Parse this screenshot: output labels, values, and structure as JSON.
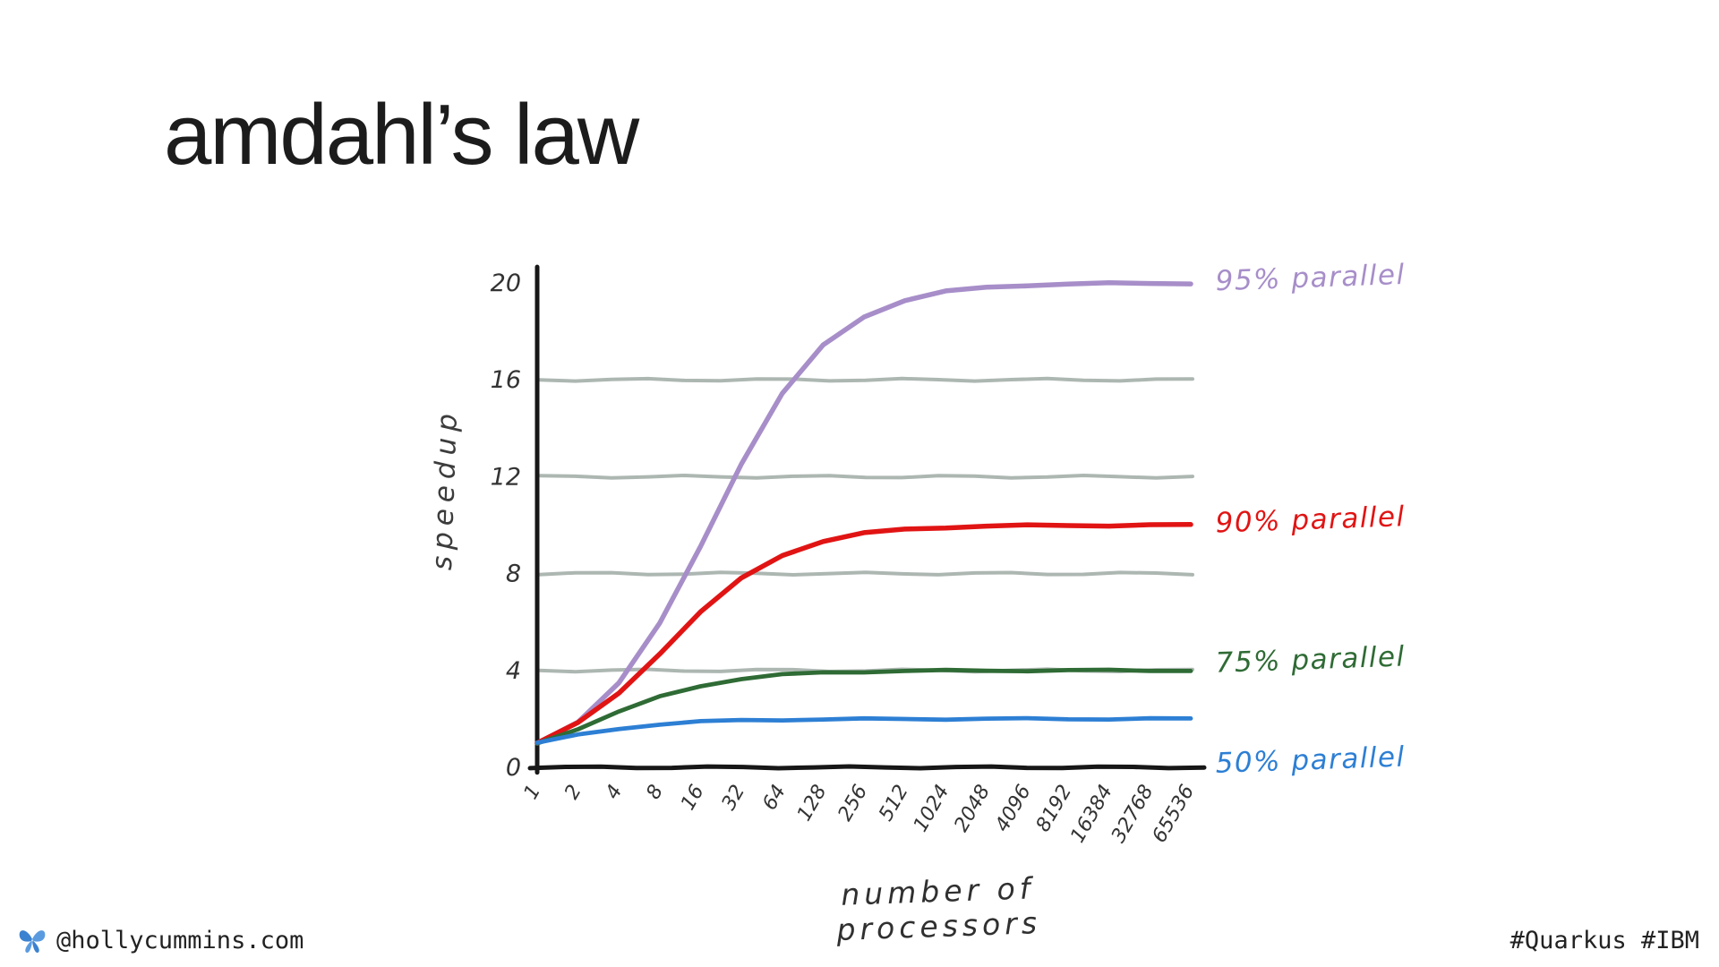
{
  "slide": {
    "title": "amdahl’s law",
    "footer_left": "@hollycummins.com",
    "footer_right": "#Quarkus #IBM",
    "icons": {
      "footer_logo": "butterfly-icon"
    }
  },
  "chart_data": {
    "type": "line",
    "title": "amdahl's law",
    "xlabel": "number of processors",
    "ylabel": "speedup",
    "x_scale": "log2",
    "ylim": [
      0,
      20
    ],
    "y_ticks": [
      0,
      4,
      8,
      12,
      16,
      20
    ],
    "gridlines_y": [
      4,
      8,
      12,
      16
    ],
    "legend_position": "right-of-lines",
    "x": [
      1,
      2,
      4,
      8,
      16,
      32,
      64,
      128,
      256,
      512,
      1024,
      2048,
      4096,
      8192,
      16384,
      32768,
      65536
    ],
    "x_tick_labels": [
      "1",
      "2",
      "4",
      "8",
      "16",
      "32",
      "64",
      "128",
      "256",
      "512",
      "1024",
      "2048",
      "4096",
      "8192",
      "16384",
      "32768",
      "65536"
    ],
    "colors": {
      "grid": "#9faaa4",
      "axis": "#171717"
    },
    "series": [
      {
        "name": "95% parallel",
        "color": "#a78ec9",
        "values": [
          1.0,
          1.9,
          3.48,
          5.93,
          9.14,
          12.55,
          15.42,
          17.42,
          18.62,
          19.28,
          19.64,
          19.82,
          19.91,
          19.95,
          19.98,
          19.99,
          19.99
        ]
      },
      {
        "name": "90% parallel",
        "color": "#e11414",
        "values": [
          1.0,
          1.82,
          3.08,
          4.71,
          6.4,
          7.8,
          8.77,
          9.34,
          9.66,
          9.83,
          9.91,
          9.96,
          9.98,
          9.99,
          9.99,
          10.0,
          10.0
        ]
      },
      {
        "name": "75% parallel",
        "color": "#2f6b35",
        "values": [
          1.0,
          1.6,
          2.29,
          2.91,
          3.37,
          3.66,
          3.82,
          3.91,
          3.95,
          3.98,
          3.99,
          3.99,
          4.0,
          4.0,
          4.0,
          4.0,
          4.0
        ]
      },
      {
        "name": "50% parallel",
        "color": "#2d7fd4",
        "values": [
          1.0,
          1.33,
          1.6,
          1.78,
          1.88,
          1.94,
          1.97,
          1.98,
          1.99,
          2.0,
          2.0,
          2.0,
          2.0,
          2.0,
          2.0,
          2.0,
          2.0
        ]
      }
    ]
  }
}
